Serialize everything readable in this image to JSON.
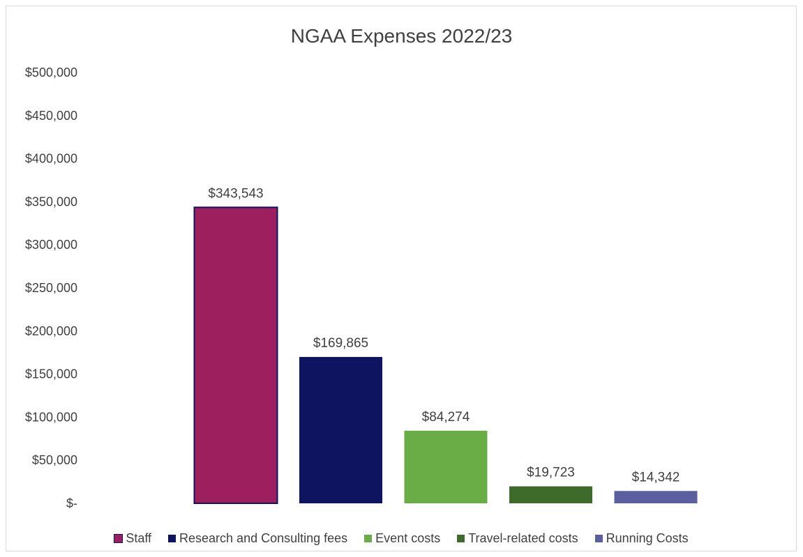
{
  "chart_data": {
    "type": "bar",
    "title": "NGAA Expenses 2022/23",
    "categories": [
      "Staff",
      "Research and Consulting fees",
      "Event costs",
      "Travel-related costs",
      "Running Costs"
    ],
    "values": [
      343543,
      169865,
      84274,
      19723,
      14342
    ],
    "data_labels": [
      "$343,543",
      "$169,865",
      "$84,274",
      "$19,723",
      "$14,342"
    ],
    "colors": [
      "#9e1f5e",
      "#0f1460",
      "#6aac45",
      "#3e6b2a",
      "#5b5e9f"
    ],
    "ylim": [
      0,
      500000
    ],
    "yticks": [
      0,
      50000,
      100000,
      150000,
      200000,
      250000,
      300000,
      350000,
      400000,
      450000,
      500000
    ],
    "ytick_labels": [
      "$-",
      "$50,000",
      "$100,000",
      "$150,000",
      "$200,000",
      "$250,000",
      "$300,000",
      "$350,000",
      "$400,000",
      "$450,000",
      "$500,000"
    ],
    "grid": false,
    "legend_position": "bottom"
  }
}
